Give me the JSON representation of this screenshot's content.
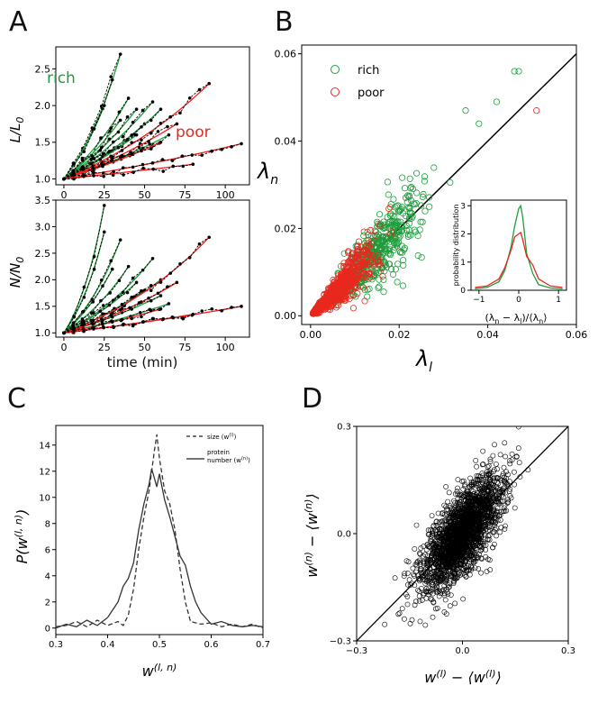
{
  "panels": {
    "A": {
      "label": "A",
      "top": {
        "ylabel": "L/L_0",
        "xticks": [
          "0",
          "25",
          "50",
          "75",
          "100"
        ],
        "yticks": [
          "1.0",
          "1.5",
          "2.0",
          "2.5"
        ],
        "legend_rich": "rich",
        "legend_poor": "poor"
      },
      "bottom": {
        "ylabel": "N/N_0",
        "xlabel": "time (min)",
        "xticks": [
          "0",
          "25",
          "50",
          "75",
          "100"
        ],
        "yticks": [
          "1.0",
          "1.5",
          "2.0",
          "2.5",
          "3.0",
          "3.5"
        ]
      }
    },
    "B": {
      "label": "B",
      "xlabel": "λ_l",
      "ylabel": "λ_n",
      "xticks": [
        "0.00",
        "0.02",
        "0.04",
        "0.06"
      ],
      "yticks": [
        "0.00",
        "0.02",
        "0.04",
        "0.06"
      ],
      "legend": [
        "rich",
        "poor"
      ],
      "inset": {
        "ylabel": "probability distribution",
        "xlabel": "(λ_n − λ_l)/⟨λ_n⟩",
        "xticks": [
          "−1",
          "0",
          "1"
        ],
        "yticks": [
          "0",
          "1",
          "2",
          "3"
        ]
      }
    },
    "C": {
      "label": "C",
      "xlabel": "w^(l,n)",
      "ylabel": "P(w^(l,n))",
      "xticks": [
        "0.3",
        "0.4",
        "0.5",
        "0.6",
        "0.7"
      ],
      "yticks": [
        "0",
        "2",
        "4",
        "6",
        "8",
        "10",
        "12",
        "14"
      ],
      "legend_size": "size (w^(l))",
      "legend_protein_1": "protein",
      "legend_protein_2": "number (w^(n))"
    },
    "D": {
      "label": "D",
      "xlabel": "w^(l) − ⟨w^(l)⟩",
      "ylabel": "w^(n) − ⟨w^(n)⟩",
      "xticks": [
        "−0.3",
        "0.0",
        "0.3"
      ],
      "yticks": [
        "−0.3",
        "0.0",
        "0.3"
      ]
    }
  },
  "colors": {
    "rich": "#1e9e3c",
    "poor": "#e8281e",
    "fit": "#ff1a1a",
    "black": "#000000"
  },
  "chart_data": [
    {
      "panel": "A-top",
      "type": "line",
      "title": "",
      "xlabel": "time (min)",
      "ylabel": "L/L0",
      "xlim": [
        -5,
        115
      ],
      "ylim": [
        0.92,
        2.8
      ],
      "series": [
        {
          "name": "rich",
          "x": [
            0,
            35
          ],
          "y": [
            1.0,
            2.7
          ]
        },
        {
          "name": "rich",
          "x": [
            0,
            30
          ],
          "y": [
            1.0,
            2.35
          ]
        },
        {
          "name": "rich",
          "x": [
            0,
            25
          ],
          "y": [
            1.0,
            2.0
          ]
        },
        {
          "name": "rich",
          "x": [
            0,
            40
          ],
          "y": [
            1.0,
            2.1
          ]
        },
        {
          "name": "rich",
          "x": [
            0,
            45
          ],
          "y": [
            1.0,
            1.95
          ]
        },
        {
          "name": "rich",
          "x": [
            0,
            35
          ],
          "y": [
            1.0,
            1.8
          ]
        },
        {
          "name": "rich",
          "x": [
            0,
            55
          ],
          "y": [
            1.0,
            2.05
          ]
        },
        {
          "name": "rich",
          "x": [
            0,
            50
          ],
          "y": [
            1.0,
            1.75
          ]
        },
        {
          "name": "rich",
          "x": [
            0,
            60
          ],
          "y": [
            1.0,
            1.95
          ]
        },
        {
          "name": "rich",
          "x": [
            0,
            45
          ],
          "y": [
            1.0,
            1.6
          ]
        },
        {
          "name": "rich",
          "x": [
            0,
            65
          ],
          "y": [
            1.0,
            1.6
          ]
        },
        {
          "name": "rich",
          "x": [
            0,
            55
          ],
          "y": [
            1.0,
            1.45
          ]
        },
        {
          "name": "poor",
          "x": [
            0,
            90
          ],
          "y": [
            1.0,
            2.3
          ]
        },
        {
          "name": "poor",
          "x": [
            0,
            70
          ],
          "y": [
            1.0,
            1.75
          ]
        },
        {
          "name": "poor",
          "x": [
            0,
            60
          ],
          "y": [
            1.0,
            1.5
          ]
        },
        {
          "name": "poor",
          "x": [
            0,
            110
          ],
          "y": [
            1.0,
            1.48
          ]
        },
        {
          "name": "poor",
          "x": [
            0,
            80
          ],
          "y": [
            1.0,
            1.2
          ]
        }
      ]
    },
    {
      "panel": "A-bottom",
      "type": "line",
      "title": "",
      "xlabel": "time (min)",
      "ylabel": "N/N0",
      "xlim": [
        -5,
        115
      ],
      "ylim": [
        0.92,
        3.5
      ],
      "series": [
        {
          "name": "rich",
          "x": [
            0,
            25
          ],
          "y": [
            1.0,
            3.4
          ]
        },
        {
          "name": "rich",
          "x": [
            0,
            25
          ],
          "y": [
            1.0,
            2.9
          ]
        },
        {
          "name": "rich",
          "x": [
            0,
            35
          ],
          "y": [
            1.0,
            2.75
          ]
        },
        {
          "name": "rich",
          "x": [
            0,
            30
          ],
          "y": [
            1.0,
            2.2
          ]
        },
        {
          "name": "rich",
          "x": [
            0,
            40
          ],
          "y": [
            1.0,
            2.25
          ]
        },
        {
          "name": "rich",
          "x": [
            0,
            55
          ],
          "y": [
            1.0,
            2.4
          ]
        },
        {
          "name": "rich",
          "x": [
            0,
            45
          ],
          "y": [
            1.0,
            1.95
          ]
        },
        {
          "name": "rich",
          "x": [
            0,
            60
          ],
          "y": [
            1.0,
            2.0
          ]
        },
        {
          "name": "rich",
          "x": [
            0,
            50
          ],
          "y": [
            1.0,
            1.8
          ]
        },
        {
          "name": "rich",
          "x": [
            0,
            60
          ],
          "y": [
            1.0,
            1.7
          ]
        },
        {
          "name": "rich",
          "x": [
            0,
            65
          ],
          "y": [
            1.0,
            1.55
          ]
        },
        {
          "name": "poor",
          "x": [
            0,
            90
          ],
          "y": [
            1.0,
            2.8
          ]
        },
        {
          "name": "poor",
          "x": [
            0,
            70
          ],
          "y": [
            1.0,
            1.95
          ]
        },
        {
          "name": "poor",
          "x": [
            0,
            60
          ],
          "y": [
            1.0,
            1.45
          ]
        },
        {
          "name": "poor",
          "x": [
            0,
            110
          ],
          "y": [
            1.0,
            1.5
          ]
        },
        {
          "name": "poor",
          "x": [
            0,
            80
          ],
          "y": [
            1.0,
            1.35
          ]
        }
      ]
    },
    {
      "panel": "B",
      "type": "scatter",
      "title": "",
      "xlabel": "λ_l",
      "ylabel": "λ_n",
      "xlim": [
        -0.002,
        0.06
      ],
      "ylim": [
        -0.002,
        0.062
      ],
      "legend": "top-left",
      "reference_line": {
        "x": [
          0,
          0.06
        ],
        "y": [
          0,
          0.06
        ]
      },
      "series": [
        {
          "name": "rich",
          "marker": "open-circle",
          "color": "#1e9e3c",
          "x_center": 0.014,
          "x_spread": 0.006,
          "y_ratio_noise": 0.25,
          "n_shown": 520
        },
        {
          "name": "poor",
          "marker": "open-circle",
          "color": "#e8281e",
          "x_center": 0.006,
          "x_spread": 0.004,
          "y_ratio_noise": 0.25,
          "n_shown": 650
        }
      ],
      "outliers": [
        {
          "series": "rich",
          "x": 0.046,
          "y": 0.056
        },
        {
          "series": "rich",
          "x": 0.047,
          "y": 0.056
        },
        {
          "series": "poor",
          "x": 0.051,
          "y": 0.047
        },
        {
          "series": "rich",
          "x": 0.035,
          "y": 0.047
        },
        {
          "series": "rich",
          "x": 0.038,
          "y": 0.044
        },
        {
          "series": "rich",
          "x": 0.042,
          "y": 0.049
        }
      ]
    },
    {
      "panel": "B-inset",
      "type": "line",
      "title": "",
      "xlabel": "(λn − λl)/⟨λn⟩",
      "ylabel": "probability distribution",
      "xlim": [
        -1.2,
        1.2
      ],
      "ylim": [
        0,
        3.2
      ],
      "series": [
        {
          "name": "rich",
          "x": [
            -1.1,
            -0.8,
            -0.5,
            -0.35,
            -0.2,
            -0.1,
            0.0,
            0.05,
            0.1,
            0.2,
            0.35,
            0.5,
            0.8,
            1.1
          ],
          "y": [
            0.05,
            0.1,
            0.3,
            0.7,
            1.5,
            2.3,
            2.9,
            3.0,
            2.6,
            1.3,
            0.6,
            0.2,
            0.08,
            0.05
          ]
        },
        {
          "name": "poor",
          "x": [
            -1.1,
            -0.8,
            -0.5,
            -0.35,
            -0.2,
            -0.1,
            0.0,
            0.05,
            0.1,
            0.2,
            0.35,
            0.5,
            0.8,
            1.1
          ],
          "y": [
            0.1,
            0.15,
            0.4,
            0.8,
            1.4,
            1.9,
            2.0,
            2.05,
            1.8,
            1.2,
            0.9,
            0.4,
            0.15,
            0.1
          ]
        }
      ]
    },
    {
      "panel": "C",
      "type": "line",
      "title": "",
      "xlabel": "w^(l,n)",
      "ylabel": "P(w^(l,n))",
      "xlim": [
        0.3,
        0.7
      ],
      "ylim": [
        -0.5,
        15.5
      ],
      "legend": "top-right",
      "series": [
        {
          "name": "size (w(l))",
          "style": "dashed",
          "x": [
            0.3,
            0.32,
            0.34,
            0.36,
            0.38,
            0.4,
            0.42,
            0.43,
            0.44,
            0.45,
            0.46,
            0.47,
            0.48,
            0.485,
            0.49,
            0.495,
            0.5,
            0.51,
            0.52,
            0.53,
            0.54,
            0.55,
            0.56,
            0.58,
            0.6,
            0.62,
            0.64,
            0.66,
            0.68,
            0.7
          ],
          "y": [
            0.1,
            0.2,
            0.5,
            0.1,
            0.6,
            0.2,
            0.5,
            0.2,
            1.0,
            3.0,
            6.0,
            8.5,
            10.5,
            12.0,
            13.5,
            14.8,
            13.0,
            10.5,
            9.5,
            7.5,
            4.5,
            2.0,
            0.5,
            0.3,
            0.4,
            0.1,
            0.3,
            0.1,
            0.3,
            0.0
          ]
        },
        {
          "name": "protein number (w(n))",
          "style": "solid",
          "x": [
            0.3,
            0.32,
            0.34,
            0.36,
            0.38,
            0.4,
            0.42,
            0.43,
            0.44,
            0.45,
            0.46,
            0.47,
            0.48,
            0.485,
            0.49,
            0.495,
            0.5,
            0.51,
            0.52,
            0.53,
            0.54,
            0.55,
            0.56,
            0.57,
            0.58,
            0.6,
            0.62,
            0.64,
            0.66,
            0.68,
            0.7
          ],
          "y": [
            0.0,
            0.3,
            0.1,
            0.6,
            0.2,
            0.8,
            2.0,
            3.2,
            3.8,
            5.0,
            7.5,
            9.5,
            11.0,
            12.2,
            11.5,
            10.8,
            11.8,
            9.8,
            8.5,
            7.0,
            5.5,
            4.8,
            3.2,
            2.0,
            1.2,
            0.3,
            0.5,
            0.2,
            0.1,
            0.2,
            0.1
          ]
        }
      ]
    },
    {
      "panel": "D",
      "type": "scatter",
      "title": "",
      "xlabel": "w(l) − ⟨w(l)⟩",
      "ylabel": "w(n) − ⟨w(n)⟩",
      "xlim": [
        -0.3,
        0.3
      ],
      "ylim": [
        -0.3,
        0.3
      ],
      "reference_line": {
        "x": [
          -0.3,
          0.3
        ],
        "y": [
          -0.3,
          0.3
        ]
      },
      "series": [
        {
          "name": "cells",
          "marker": "open-circle",
          "color": "#000000",
          "x_center": 0.0,
          "x_spread": 0.055,
          "slope": 1.0,
          "noise": 0.055,
          "n_shown": 2200
        }
      ]
    }
  ]
}
